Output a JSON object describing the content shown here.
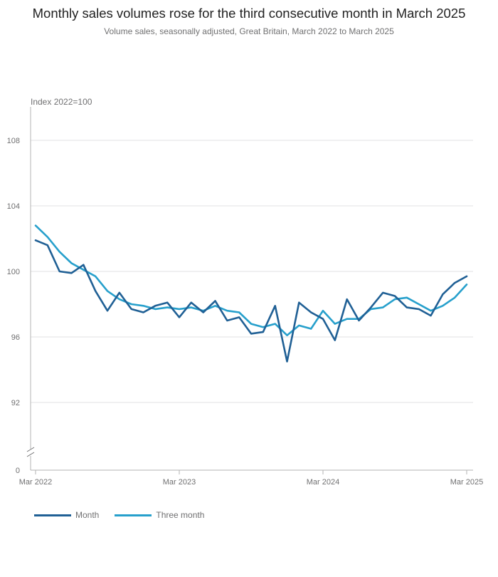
{
  "title": "Monthly sales volumes rose for the third consecutive month in March 2025",
  "subtitle": "Volume sales, seasonally adjusted, Great Britain, March 2022 to March 2025",
  "chart_data": {
    "type": "line",
    "ylabel": "Index 2022=100",
    "ylim": [
      88,
      110
    ],
    "yticks": [
      "108",
      "104",
      "100",
      "96",
      "92"
    ],
    "y_axis_break_label": "0",
    "xticks": [
      "Mar 2022",
      "Mar 2023",
      "Mar 2024",
      "Mar 2025"
    ],
    "grid": true,
    "legend_position": "bottom-left",
    "series": [
      {
        "name": "Month",
        "color": "#206095",
        "values": [
          101.9,
          101.6,
          100.0,
          99.9,
          100.4,
          98.8,
          97.6,
          98.7,
          97.7,
          97.5,
          97.9,
          98.1,
          97.2,
          98.1,
          97.5,
          98.2,
          97.0,
          97.2,
          96.2,
          96.3,
          97.9,
          94.5,
          98.1,
          97.5,
          97.1,
          95.8,
          98.3,
          97.0,
          97.8,
          98.7,
          98.5,
          97.8,
          97.7,
          97.3,
          98.6,
          99.3,
          99.7
        ]
      },
      {
        "name": "Three month",
        "color": "#27a0cc",
        "values": [
          102.8,
          102.1,
          101.2,
          100.5,
          100.1,
          99.7,
          98.8,
          98.3,
          98.0,
          97.9,
          97.7,
          97.8,
          97.7,
          97.8,
          97.6,
          97.9,
          97.6,
          97.5,
          96.8,
          96.6,
          96.8,
          96.1,
          96.7,
          96.5,
          97.6,
          96.8,
          97.1,
          97.1,
          97.7,
          97.8,
          98.3,
          98.4,
          98.0,
          97.6,
          97.9,
          98.4,
          99.2
        ]
      }
    ]
  }
}
